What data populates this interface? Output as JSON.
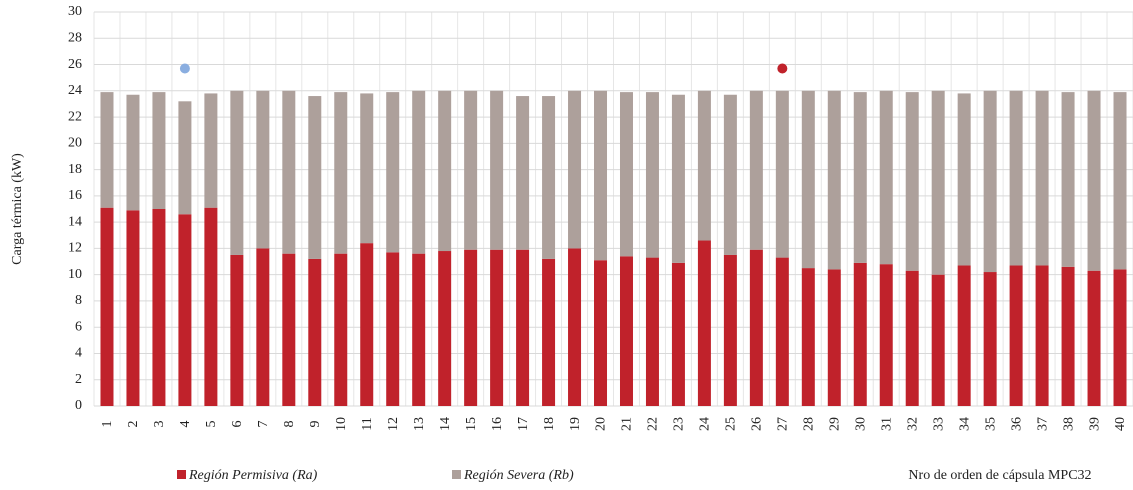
{
  "chart_data": {
    "type": "stacked_bar",
    "y_label": "Carga térmica (kW)",
    "x_label": "Nro de orden de cápsula MPC32",
    "categories": [
      "1",
      "2",
      "3",
      "4",
      "5",
      "6",
      "7",
      "8",
      "9",
      "10",
      "11",
      "12",
      "13",
      "14",
      "15",
      "16",
      "17",
      "18",
      "19",
      "20",
      "21",
      "22",
      "23",
      "24",
      "25",
      "26",
      "27",
      "28",
      "29",
      "30",
      "31",
      "32",
      "33",
      "34",
      "35",
      "36",
      "37",
      "38",
      "39",
      "40"
    ],
    "series": [
      {
        "name": "Región Permisiva (Ra)",
        "color": "#c0222b",
        "values": [
          15.1,
          14.9,
          15.0,
          14.6,
          15.1,
          11.5,
          12.0,
          11.6,
          11.2,
          11.6,
          12.4,
          11.7,
          11.6,
          11.8,
          11.9,
          11.9,
          11.9,
          11.2,
          12.0,
          11.1,
          11.4,
          11.3,
          10.9,
          12.6,
          11.5,
          11.9,
          11.3,
          10.5,
          10.4,
          10.9,
          10.8,
          10.3,
          10.0,
          10.7,
          10.2,
          10.7,
          10.7,
          10.6,
          10.3,
          10.4
        ]
      },
      {
        "name": "Región Severa (Rb)",
        "color": "#ada09b",
        "values": [
          8.8,
          8.8,
          8.9,
          8.6,
          8.7,
          12.5,
          12.0,
          12.4,
          12.4,
          12.3,
          11.4,
          12.2,
          12.4,
          12.2,
          12.1,
          12.1,
          11.7,
          12.4,
          12.0,
          12.9,
          12.5,
          12.6,
          12.8,
          11.4,
          12.2,
          12.1,
          12.7,
          13.5,
          13.6,
          13.0,
          13.2,
          13.6,
          14.0,
          13.1,
          13.8,
          13.3,
          13.3,
          13.3,
          13.7,
          13.5
        ]
      }
    ],
    "points": [
      {
        "category": "4",
        "value": 25.7,
        "color": "#8aaee0"
      },
      {
        "category": "27",
        "value": 25.7,
        "color": "#c0222b"
      }
    ],
    "ylim": [
      0,
      30
    ],
    "yticks": [
      0,
      2,
      4,
      6,
      8,
      10,
      12,
      14,
      16,
      18,
      20,
      22,
      24,
      26,
      28,
      30
    ],
    "grid": true
  }
}
